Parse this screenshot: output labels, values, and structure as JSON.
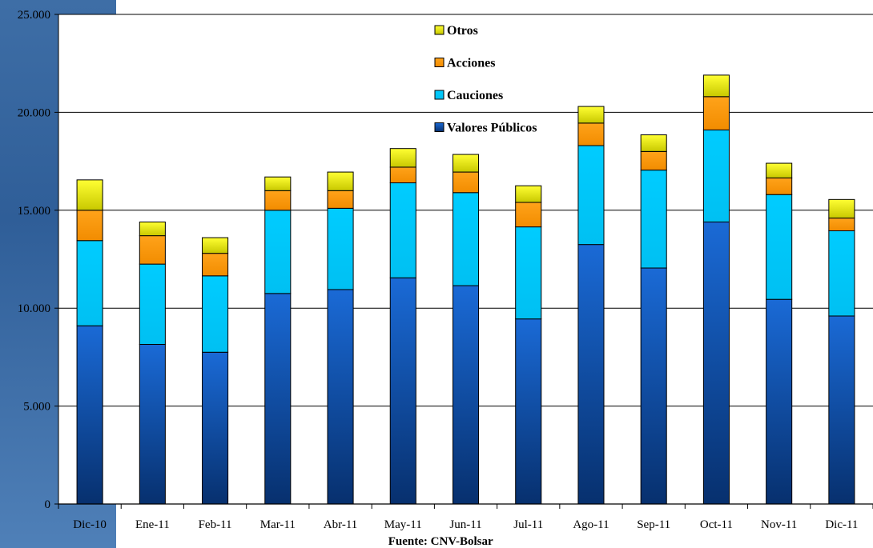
{
  "chart_data": {
    "type": "bar",
    "stacked": true,
    "categories": [
      "Dic-10",
      "Ene-11",
      "Feb-11",
      "Mar-11",
      "Abr-11",
      "May-11",
      "Jun-11",
      "Jul-11",
      "Ago-11",
      "Sep-11",
      "Oct-11",
      "Nov-11",
      "Dic-11"
    ],
    "series": [
      {
        "name": "Valores Públicos",
        "color": "#0d4fa8",
        "values": [
          9100,
          8150,
          7750,
          10750,
          10950,
          11550,
          11150,
          9450,
          13250,
          12050,
          14400,
          10450,
          9600
        ]
      },
      {
        "name": "Cauciones",
        "color": "#00ccff",
        "values": [
          4350,
          4100,
          3900,
          4250,
          4150,
          4850,
          4750,
          4700,
          5050,
          5000,
          4700,
          5350,
          4350
        ]
      },
      {
        "name": "Acciones",
        "color": "#ff9900",
        "values": [
          1550,
          1450,
          1150,
          1000,
          900,
          800,
          1050,
          1250,
          1150,
          950,
          1700,
          850,
          650
        ]
      },
      {
        "name": "Otros",
        "color": "#ffff00",
        "values": [
          1550,
          700,
          800,
          700,
          950,
          950,
          900,
          850,
          850,
          850,
          1100,
          750,
          950
        ]
      }
    ],
    "yticks": [
      "0",
      "5.000",
      "10.000",
      "15.000",
      "20.000",
      "25.000"
    ],
    "ylim": [
      0,
      25000
    ],
    "grid": true,
    "legend_position": "top-center",
    "legend_order": [
      "Otros",
      "Acciones",
      "Cauciones",
      "Valores Públicos"
    ],
    "source_note": "Fuente: CNV-Bolsar"
  }
}
